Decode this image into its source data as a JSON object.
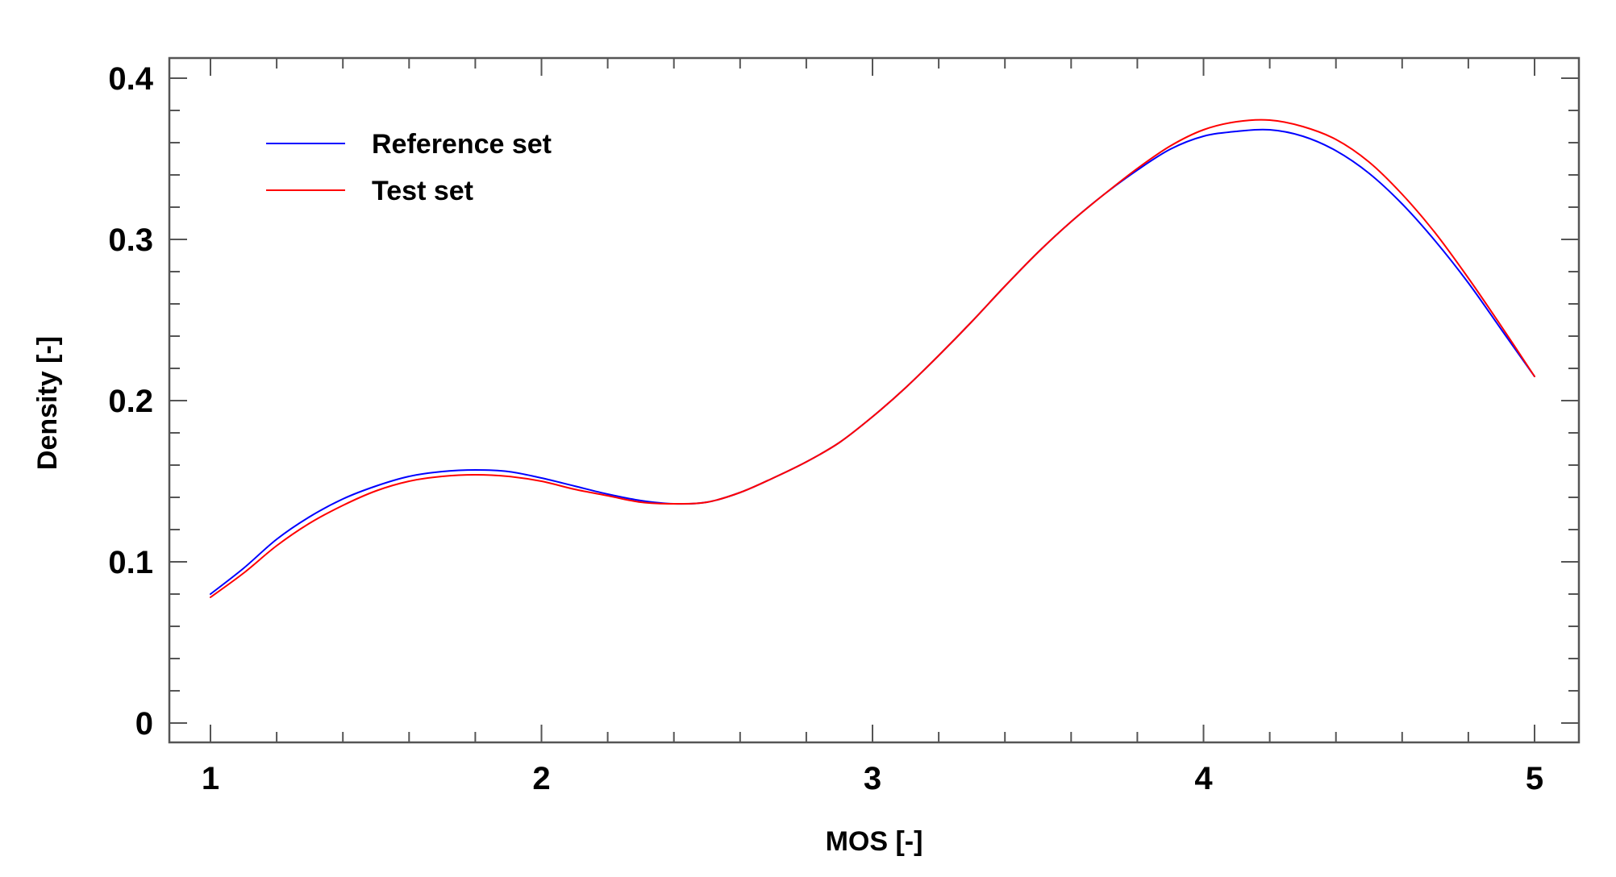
{
  "chart_data": {
    "type": "line",
    "title": "",
    "xlabel": "MOS [-]",
    "ylabel": "Density [-]",
    "xlim": [
      1,
      5
    ],
    "ylim": [
      0,
      0.4
    ],
    "x_ticks": [
      1,
      2,
      3,
      4,
      5
    ],
    "x_tick_labels": [
      "1",
      "2",
      "3",
      "4",
      "5"
    ],
    "y_ticks": [
      0,
      0.1,
      0.2,
      0.3,
      0.4
    ],
    "y_tick_labels": [
      "0",
      "0.1",
      "0.2",
      "0.3",
      "0.4"
    ],
    "grid": false,
    "legend_position": "top-left",
    "series": [
      {
        "name": "Reference set",
        "color": "#0000ff",
        "x": [
          1.0,
          1.1,
          1.2,
          1.3,
          1.4,
          1.5,
          1.6,
          1.7,
          1.8,
          1.9,
          2.0,
          2.1,
          2.2,
          2.3,
          2.4,
          2.5,
          2.6,
          2.7,
          2.8,
          2.9,
          3.0,
          3.1,
          3.2,
          3.3,
          3.4,
          3.5,
          3.6,
          3.7,
          3.8,
          3.9,
          4.0,
          4.1,
          4.2,
          4.3,
          4.4,
          4.5,
          4.6,
          4.7,
          4.8,
          4.9,
          5.0
        ],
        "y": [
          0.08,
          0.096,
          0.114,
          0.128,
          0.139,
          0.147,
          0.153,
          0.156,
          0.157,
          0.156,
          0.152,
          0.147,
          0.142,
          0.138,
          0.136,
          0.137,
          0.143,
          0.152,
          0.162,
          0.174,
          0.19,
          0.208,
          0.228,
          0.249,
          0.271,
          0.292,
          0.311,
          0.328,
          0.343,
          0.356,
          0.364,
          0.367,
          0.368,
          0.364,
          0.355,
          0.341,
          0.322,
          0.299,
          0.273,
          0.244,
          0.215
        ]
      },
      {
        "name": "Test set",
        "color": "#ff0000",
        "x": [
          1.0,
          1.1,
          1.2,
          1.3,
          1.4,
          1.5,
          1.6,
          1.7,
          1.8,
          1.9,
          2.0,
          2.1,
          2.2,
          2.3,
          2.4,
          2.5,
          2.6,
          2.7,
          2.8,
          2.9,
          3.0,
          3.1,
          3.2,
          3.3,
          3.4,
          3.5,
          3.6,
          3.7,
          3.8,
          3.9,
          4.0,
          4.1,
          4.2,
          4.3,
          4.4,
          4.5,
          4.6,
          4.7,
          4.8,
          4.9,
          5.0
        ],
        "y": [
          0.078,
          0.093,
          0.11,
          0.124,
          0.135,
          0.144,
          0.15,
          0.153,
          0.154,
          0.153,
          0.15,
          0.145,
          0.141,
          0.137,
          0.136,
          0.137,
          0.143,
          0.152,
          0.162,
          0.174,
          0.19,
          0.208,
          0.228,
          0.249,
          0.271,
          0.292,
          0.311,
          0.328,
          0.344,
          0.358,
          0.368,
          0.373,
          0.374,
          0.37,
          0.362,
          0.348,
          0.328,
          0.304,
          0.276,
          0.246,
          0.215
        ]
      }
    ]
  }
}
